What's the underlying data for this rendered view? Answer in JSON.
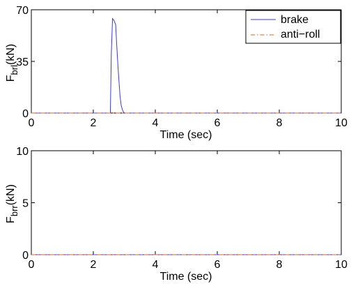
{
  "chart_data": [
    {
      "type": "line",
      "xlabel": "Time (sec)",
      "ylabel_main": "F",
      "ylabel_sub": "brl",
      "ylabel_unit": "(kN)",
      "xlim": [
        0,
        10
      ],
      "ylim": [
        0,
        70
      ],
      "xticks": [
        "0",
        "2",
        "4",
        "6",
        "8",
        "10"
      ],
      "yticks": [
        "0",
        "35",
        "70"
      ],
      "grid": false,
      "legend_position": "top-right",
      "series": [
        {
          "name": "brake",
          "color": "#3a3ad8",
          "style": "solid",
          "x": [
            0,
            2.55,
            2.58,
            2.62,
            2.66,
            2.72,
            2.75,
            2.8,
            2.86,
            2.9,
            2.95,
            3.0,
            10
          ],
          "y": [
            0,
            0,
            40,
            64,
            63,
            60,
            48,
            30,
            12,
            5,
            1.5,
            0,
            0
          ]
        },
        {
          "name": "anti−roll",
          "color": "#e06020",
          "style": "dashdot",
          "x": [
            0,
            10
          ],
          "y": [
            0,
            0
          ]
        }
      ]
    },
    {
      "type": "line",
      "xlabel": "Time (sec)",
      "ylabel_main": "F",
      "ylabel_sub": "brr",
      "ylabel_unit": "(kN)",
      "xlim": [
        0,
        10
      ],
      "ylim": [
        0,
        10
      ],
      "xticks": [
        "0",
        "2",
        "4",
        "6",
        "8",
        "10"
      ],
      "yticks": [
        "0",
        "5",
        "10"
      ],
      "grid": false,
      "series": [
        {
          "color": "#3a3ad8",
          "style": "solid",
          "x": [
            0,
            10
          ],
          "y": [
            0,
            0
          ]
        },
        {
          "color": "#e06020",
          "style": "dashdot",
          "x": [
            0,
            10
          ],
          "y": [
            0,
            0
          ]
        }
      ]
    }
  ]
}
